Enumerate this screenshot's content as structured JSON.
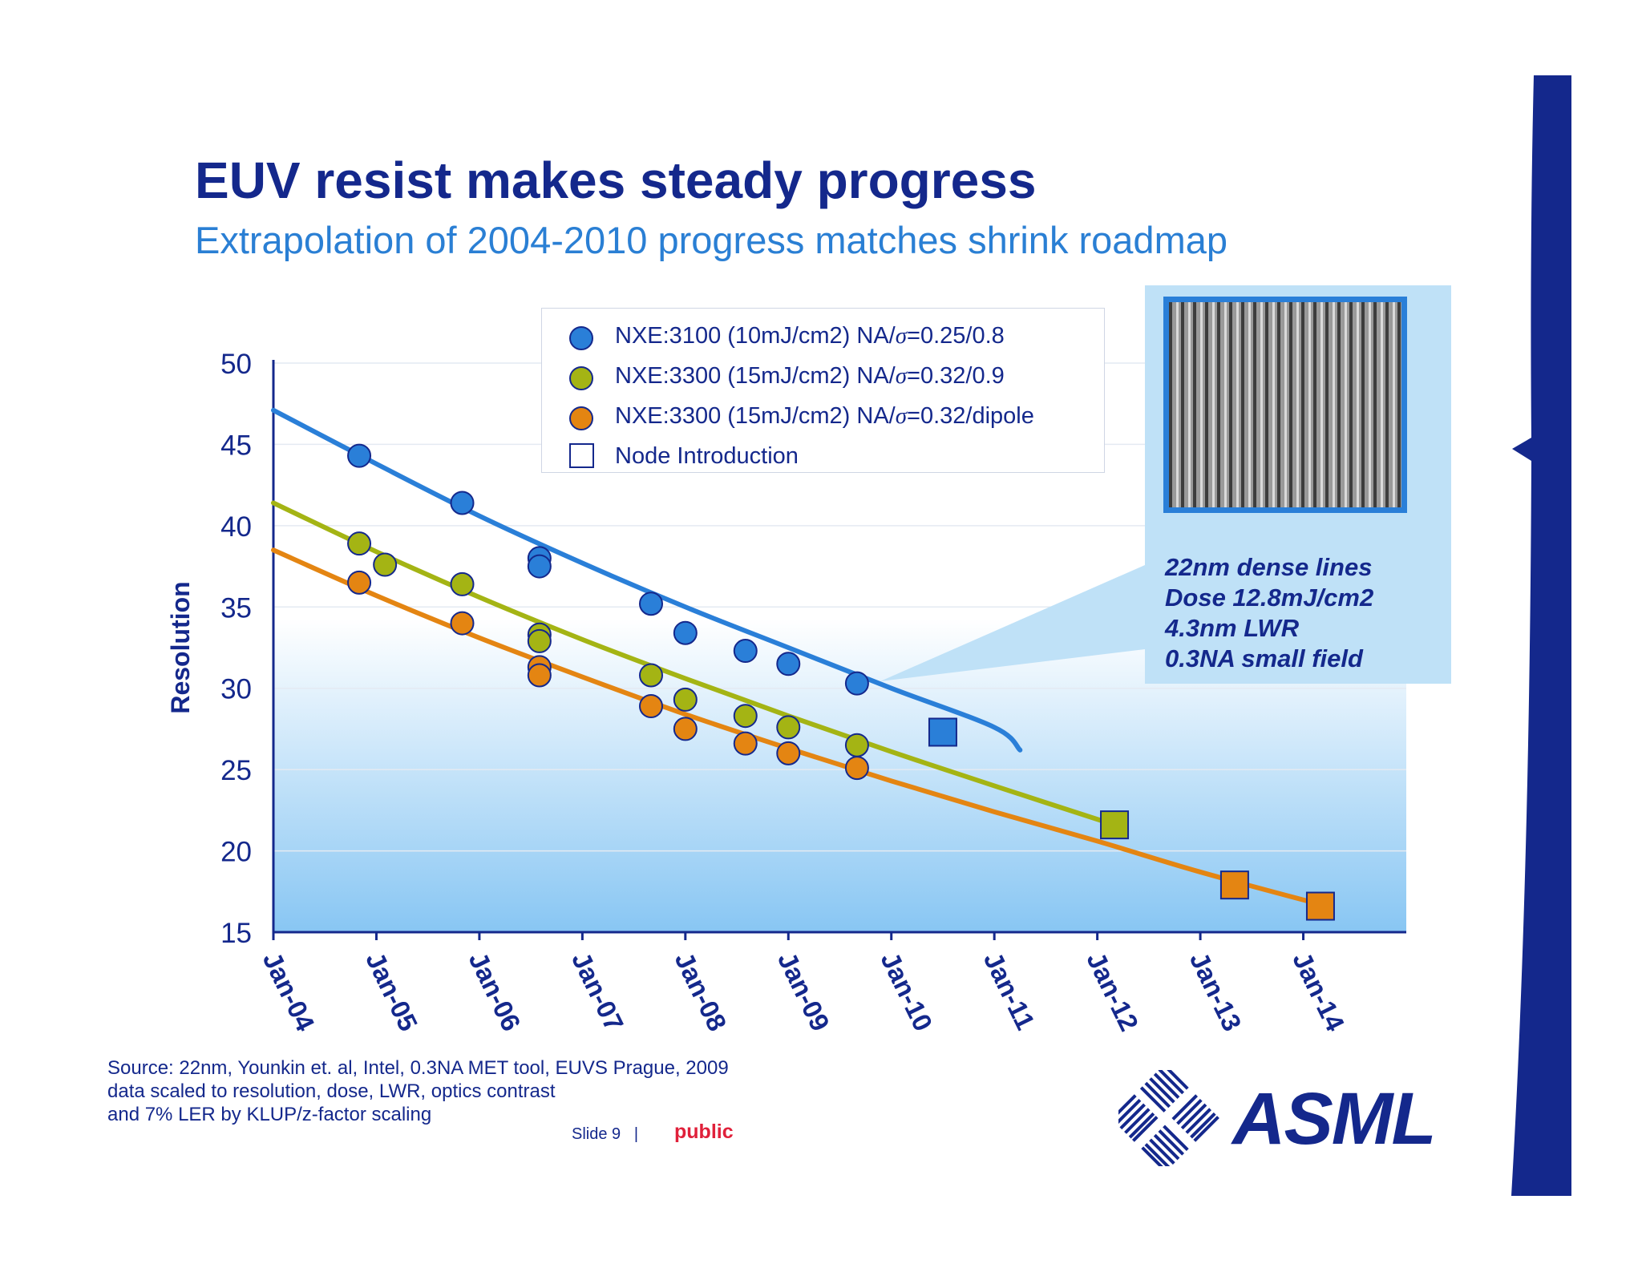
{
  "slide": {
    "title": "EUV resist makes steady progress",
    "subtitle": "Extrapolation of 2004-2010 progress matches shrink roadmap",
    "source_lines": [
      "Source: 22nm, Younkin et. al, Intel, 0.3NA MET tool, EUVS Prague, 2009",
      "data scaled to resolution, dose, LWR,  optics contrast",
      "and 7% LER by KLUP/z-factor scaling"
    ],
    "slide_number": "Slide 9",
    "separator": "|",
    "classification": "public",
    "logo_text": "ASML"
  },
  "colors": {
    "brand_navy": "#14288c",
    "subtitle_blue": "#2a7fd4",
    "series_blue": "#2a7fd8",
    "series_green": "#a4b414",
    "series_orange": "#e48512",
    "public_red": "#e0203a"
  },
  "callout": {
    "lines": [
      "22nm dense lines",
      "Dose 12.8mJ/cm2",
      "4.3nm LWR",
      "0.3NA small field"
    ]
  },
  "chart_data": {
    "type": "scatter",
    "title": "",
    "xlabel": "",
    "ylabel": "Resolution",
    "ylim": [
      15,
      50
    ],
    "yticks": [
      "15",
      "20",
      "25",
      "30",
      "35",
      "40",
      "45",
      "50"
    ],
    "xlim": [
      "Jan-04",
      "Jan-15"
    ],
    "xticks": [
      "Jan-04",
      "Jan-05",
      "Jan-06",
      "Jan-07",
      "Jan-08",
      "Jan-09",
      "Jan-10",
      "Jan-11",
      "Jan-12",
      "Jan-13",
      "Jan-14"
    ],
    "grid": true,
    "legend_position": "top-center",
    "series": [
      {
        "name": "NXE:3100 (10mJ/cm2)  NA/σ=0.25/0.8",
        "legend_prefix": "NXE:3100 (10mJ/cm2)  NA/",
        "legend_suffix": "=0.25/0.8",
        "color": "#2a7fd8",
        "marker": "circle",
        "points": [
          [
            "2004-11",
            44.3
          ],
          [
            "2005-11",
            41.4
          ],
          [
            "2006-08",
            38.0
          ],
          [
            "2006-08",
            37.5
          ],
          [
            "2007-09",
            35.2
          ],
          [
            "2008-01",
            33.4
          ],
          [
            "2008-08",
            32.3
          ],
          [
            "2009-01",
            31.5
          ],
          [
            "2009-09",
            30.3
          ]
        ],
        "trend": [
          [
            "2004-01",
            47.1
          ],
          [
            "2005-01",
            43.8
          ],
          [
            "2006-01",
            40.6
          ],
          [
            "2007-01",
            37.7
          ],
          [
            "2008-01",
            35.0
          ],
          [
            "2009-01",
            32.5
          ],
          [
            "2010-01",
            30.0
          ],
          [
            "2011-01",
            27.6
          ],
          [
            "2011-04",
            26.2
          ]
        ],
        "node": [
          "2010-07",
          27.3
        ]
      },
      {
        "name": "NXE:3300 (15mJ/cm2) NA/σ=0.32/0.9",
        "legend_prefix": "NXE:3300 (15mJ/cm2) NA/",
        "legend_suffix": "=0.32/0.9",
        "color": "#a4b414",
        "marker": "circle",
        "points": [
          [
            "2004-11",
            38.9
          ],
          [
            "2005-02",
            37.6
          ],
          [
            "2005-11",
            36.4
          ],
          [
            "2006-08",
            33.3
          ],
          [
            "2006-08",
            32.9
          ],
          [
            "2007-09",
            30.8
          ],
          [
            "2008-01",
            29.3
          ],
          [
            "2008-08",
            28.3
          ],
          [
            "2009-01",
            27.6
          ],
          [
            "2009-09",
            26.5
          ]
        ],
        "trend": [
          [
            "2004-01",
            41.4
          ],
          [
            "2005-01",
            38.4
          ],
          [
            "2006-01",
            35.6
          ],
          [
            "2007-01",
            33.0
          ],
          [
            "2008-01",
            30.6
          ],
          [
            "2009-01",
            28.3
          ],
          [
            "2010-01",
            26.1
          ],
          [
            "2011-01",
            24.0
          ],
          [
            "2012-03",
            21.6
          ]
        ],
        "node": [
          "2012-03",
          21.6
        ]
      },
      {
        "name": "NXE:3300 (15mJ/cm2) NA/σ=0.32/dipole",
        "legend_prefix": "NXE:3300 (15mJ/cm2) NA/",
        "legend_suffix": "=0.32/dipole",
        "color": "#e48512",
        "marker": "circle",
        "points": [
          [
            "2004-11",
            36.5
          ],
          [
            "2005-11",
            34.0
          ],
          [
            "2006-08",
            31.3
          ],
          [
            "2006-08",
            30.8
          ],
          [
            "2007-09",
            28.9
          ],
          [
            "2008-01",
            27.5
          ],
          [
            "2008-08",
            26.6
          ],
          [
            "2009-01",
            26.0
          ],
          [
            "2009-09",
            25.1
          ]
        ],
        "trend": [
          [
            "2004-01",
            38.5
          ],
          [
            "2005-01",
            35.7
          ],
          [
            "2006-01",
            33.1
          ],
          [
            "2007-01",
            30.7
          ],
          [
            "2008-01",
            28.4
          ],
          [
            "2009-01",
            26.3
          ],
          [
            "2010-01",
            24.3
          ],
          [
            "2011-01",
            22.4
          ],
          [
            "2012-01",
            20.6
          ],
          [
            "2013-01",
            18.7
          ],
          [
            "2014-03",
            16.7
          ]
        ],
        "node": [
          "2013-05",
          17.9
        ],
        "node2": [
          "2014-03",
          16.6
        ]
      }
    ],
    "legend_extra": "Node Introduction"
  }
}
